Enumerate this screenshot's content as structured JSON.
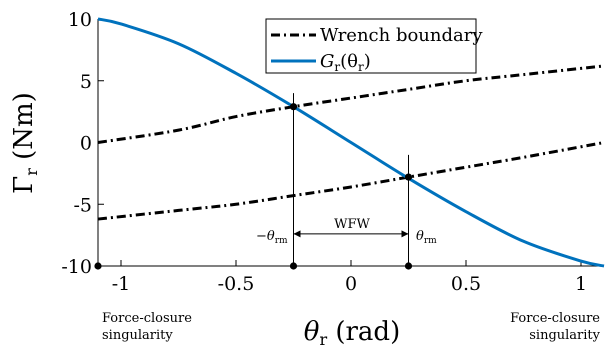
{
  "chart_data": {
    "type": "line",
    "xlabel_main": "θ",
    "xlabel_sub": "r",
    "xlabel_unit": " (rad)",
    "ylabel_main": "Γ",
    "ylabel_sub": "r",
    "ylabel_unit": " (Nm)",
    "xlim": [
      -1.1,
      1.1
    ],
    "ylim": [
      -10,
      10
    ],
    "xticks": [
      -1,
      -0.5,
      0,
      0.5,
      1
    ],
    "xtick_labels": [
      "-1",
      "-0.5",
      "0",
      "0.5",
      "1"
    ],
    "yticks": [
      -10,
      -5,
      0,
      5,
      10
    ],
    "ytick_labels": [
      "-10",
      "-5",
      "0",
      "5",
      "10"
    ],
    "grid": false,
    "legend_position": "top-right",
    "legend": {
      "wrench_label": "Wrench boundary",
      "g_main": "G",
      "g_sub": "r",
      "g_open": "(θ",
      "g_sub2": "r",
      "g_close": ")"
    },
    "series": [
      {
        "key": "wrench_upper",
        "style": "dash-dot",
        "color": "#000000",
        "x": [
          -1.1,
          -0.75,
          -0.5,
          -0.25,
          0,
          0.25,
          0.5,
          0.75,
          1.1
        ],
        "y": [
          0.0,
          1.0,
          2.1,
          2.9,
          3.6,
          4.3,
          5.0,
          5.5,
          6.2
        ]
      },
      {
        "key": "wrench_lower",
        "style": "dash-dot",
        "color": "#000000",
        "x": [
          -1.1,
          -0.75,
          -0.5,
          -0.25,
          0,
          0.25,
          0.5,
          0.75,
          1.1
        ],
        "y": [
          -6.2,
          -5.5,
          -5.0,
          -4.3,
          -3.6,
          -2.8,
          -2.0,
          -1.2,
          0.0
        ]
      },
      {
        "key": "G_r",
        "style": "solid",
        "color": "#0072bd",
        "x": [
          -1.1,
          -1.0,
          -0.75,
          -0.5,
          -0.25,
          0,
          0.25,
          0.5,
          0.75,
          1.0,
          1.1
        ],
        "y": [
          10.0,
          9.6,
          8.0,
          5.6,
          2.9,
          0.0,
          -2.9,
          -5.6,
          -8.0,
          -9.6,
          -10.0
        ]
      }
    ],
    "markers": [
      {
        "x": -0.25,
        "y": 2.9
      },
      {
        "x": 0.25,
        "y": -2.8
      },
      {
        "x": -1.1,
        "y": -10
      },
      {
        "x": -0.25,
        "y": -10
      },
      {
        "x": 0.25,
        "y": -10
      }
    ],
    "vlines": [
      {
        "x": -0.25,
        "y_top": 4.0
      },
      {
        "x": 0.25,
        "y_top": -1.0
      }
    ],
    "annotations": {
      "wfw": "WFW",
      "theta_left_prefix": "−θ",
      "theta_left_sub": "rm",
      "theta_right_prefix": "θ",
      "theta_right_sub": "rm",
      "fc_left_line1": "Force-closure",
      "fc_left_line2": "singularity",
      "fc_right_line1": "Force-closure",
      "fc_right_line2": "singularity",
      "arrow_y": -7.4
    }
  }
}
